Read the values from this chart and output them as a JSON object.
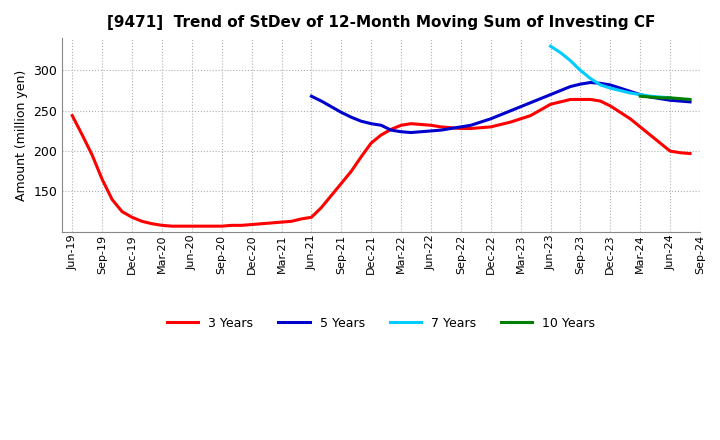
{
  "title": "[9471]  Trend of StDev of 12-Month Moving Sum of Investing CF",
  "ylabel": "Amount (million yen)",
  "ylim": [
    100,
    340
  ],
  "yticks": [
    150,
    200,
    250,
    300
  ],
  "background_color": "#ffffff",
  "grid_color": "#b0b0b0",
  "series": {
    "3years": {
      "color": "#ff0000",
      "label": "3 Years",
      "x": [
        0,
        1,
        2,
        3,
        4,
        5,
        6,
        7,
        8,
        9,
        10,
        11,
        12,
        13,
        14,
        15,
        16,
        17,
        18,
        19,
        20,
        21,
        22,
        23,
        24,
        25,
        26,
        27,
        28,
        29,
        30,
        31,
        32,
        33,
        34,
        35,
        36,
        37,
        38,
        39,
        40,
        41,
        42,
        43,
        44,
        45,
        46,
        47,
        48,
        49,
        50,
        51,
        52,
        53,
        54,
        55,
        56,
        57,
        58,
        59,
        60,
        61,
        62
      ],
      "y": [
        244,
        220,
        195,
        165,
        140,
        125,
        118,
        113,
        110,
        108,
        107,
        107,
        107,
        107,
        107,
        107,
        108,
        108,
        109,
        110,
        111,
        112,
        113,
        116,
        118,
        130,
        145,
        160,
        175,
        193,
        210,
        220,
        227,
        232,
        234,
        233,
        232,
        230,
        229,
        228,
        228,
        229,
        230,
        233,
        236,
        240,
        244,
        251,
        258,
        261,
        264,
        264,
        264,
        262,
        256,
        248,
        240,
        230,
        220,
        210,
        200,
        198,
        197
      ]
    },
    "5years": {
      "color": "#0000cd",
      "label": "5 Years",
      "x": [
        24,
        25,
        26,
        27,
        28,
        29,
        30,
        31,
        32,
        33,
        34,
        35,
        36,
        37,
        38,
        39,
        40,
        41,
        42,
        43,
        44,
        45,
        46,
        47,
        48,
        49,
        50,
        51,
        52,
        53,
        54,
        55,
        56,
        57,
        58,
        59,
        60,
        61,
        62
      ],
      "y": [
        268,
        262,
        255,
        248,
        242,
        237,
        234,
        232,
        226,
        224,
        223,
        224,
        225,
        226,
        228,
        230,
        232,
        236,
        240,
        245,
        250,
        255,
        260,
        265,
        270,
        275,
        280,
        283,
        285,
        284,
        282,
        278,
        274,
        270,
        267,
        265,
        263,
        262,
        261
      ]
    },
    "7years": {
      "color": "#00ccff",
      "label": "7 Years",
      "x": [
        48,
        49,
        50,
        51,
        52,
        53,
        54,
        55,
        56,
        57,
        58,
        59,
        60
      ],
      "y": [
        330,
        322,
        312,
        300,
        290,
        282,
        278,
        275,
        272,
        270,
        268,
        267,
        266
      ]
    },
    "10years": {
      "color": "#008000",
      "label": "10 Years",
      "x": [
        57,
        58,
        59,
        60,
        61,
        62
      ],
      "y": [
        268,
        267,
        266,
        266,
        265,
        264
      ]
    }
  },
  "x_tick_labels": [
    "Jun-19",
    "Sep-19",
    "Dec-19",
    "Mar-20",
    "Jun-20",
    "Sep-20",
    "Dec-20",
    "Mar-21",
    "Jun-21",
    "Sep-21",
    "Dec-21",
    "Mar-22",
    "Jun-22",
    "Sep-22",
    "Dec-22",
    "Mar-23",
    "Jun-23",
    "Sep-23",
    "Dec-23",
    "Mar-24",
    "Jun-24",
    "Sep-24"
  ],
  "x_tick_positions": [
    0,
    3,
    6,
    9,
    12,
    15,
    18,
    21,
    24,
    27,
    30,
    33,
    36,
    39,
    42,
    45,
    48,
    51,
    54,
    57,
    60,
    63
  ],
  "n_months": 63,
  "legend_labels": [
    "3 Years",
    "5 Years",
    "7 Years",
    "10 Years"
  ],
  "legend_colors": [
    "#ff0000",
    "#0000cd",
    "#00ccff",
    "#008000"
  ]
}
